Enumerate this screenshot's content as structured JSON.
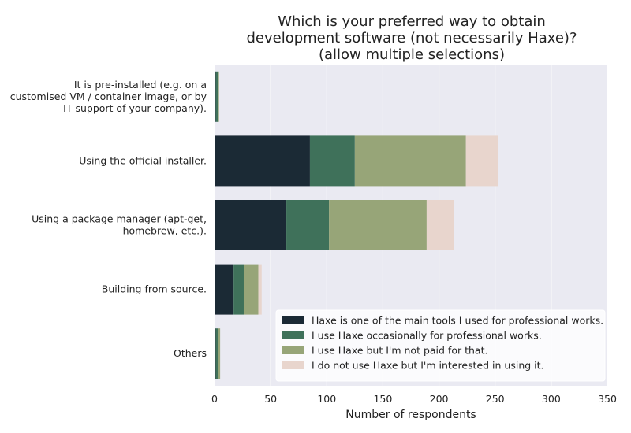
{
  "chart_data": {
    "type": "bar",
    "orientation": "horizontal",
    "stacked": true,
    "title_lines": [
      "Which is your preferred way to obtain",
      "development software (not necessarily Haxe)?",
      "(allow multiple selections)"
    ],
    "xlabel": "Number of respondents",
    "ylabel": "",
    "xlim": [
      0,
      350
    ],
    "xticks": [
      0,
      50,
      100,
      150,
      200,
      250,
      300,
      350
    ],
    "grid": true,
    "legend_position": "bottom-right",
    "categories": [
      {
        "lines": [
          "It is pre-installed (e.g. on a",
          "customised VM / container image, or by",
          "IT support of your company)."
        ]
      },
      {
        "lines": [
          "Using the official installer."
        ]
      },
      {
        "lines": [
          "Using a package manager (apt-get,",
          "homebrew, etc.)."
        ]
      },
      {
        "lines": [
          "Building from source."
        ]
      },
      {
        "lines": [
          "Others"
        ]
      }
    ],
    "series": [
      {
        "name": "Haxe is one of the main tools I used for professional works.",
        "color": "#1b2a35",
        "values": [
          1,
          85,
          64,
          17,
          1
        ]
      },
      {
        "name": "I use Haxe occasionally for professional works.",
        "color": "#3f715a",
        "values": [
          2,
          40,
          38,
          9,
          2
        ]
      },
      {
        "name": "I use Haxe but I'm not paid for that.",
        "color": "#97a578",
        "values": [
          1,
          99,
          87,
          13,
          2
        ]
      },
      {
        "name": "I do not use Haxe but I'm interested in using it.",
        "color": "#e8d5cd",
        "values": [
          0,
          29,
          24,
          3,
          0
        ]
      }
    ]
  },
  "colors": {
    "plot_background": "#eaeaf2",
    "grid": "#ffffff",
    "legend_background": "#ffffff"
  }
}
